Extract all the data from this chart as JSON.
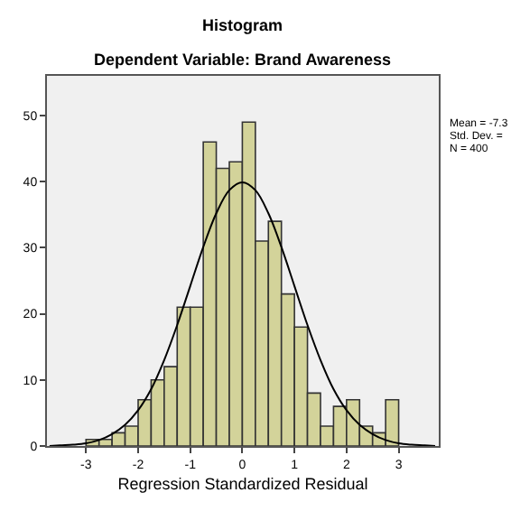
{
  "chart_data": {
    "type": "histogram",
    "title": "Histogram",
    "subtitle": "Dependent Variable: Brand Awareness",
    "xlabel": "Regression Standardized Residual",
    "bins": [
      -3,
      -2.75,
      -2.5,
      -2.25,
      -2,
      -1.75,
      -1.5,
      -1.25,
      -1,
      -0.75,
      -0.5,
      -0.25,
      0,
      0.25,
      0.5,
      0.75,
      1,
      1.25,
      1.5,
      1.75,
      2,
      2.25,
      2.5,
      2.75,
      3
    ],
    "values": [
      1,
      1,
      2,
      3,
      7,
      10,
      12,
      21,
      21,
      46,
      42,
      43,
      49,
      31,
      34,
      23,
      18,
      8,
      3,
      6,
      7,
      3,
      2,
      7
    ],
    "color": "#d3d39a",
    "series": [
      {
        "type": "line",
        "color": "#000000",
        "x": [
          -3.7,
          -3.5,
          -3.25,
          -3,
          -2.75,
          -2.5,
          -2.25,
          -2,
          -1.75,
          -1.5,
          -1.25,
          -1,
          -0.75,
          -0.5,
          -0.25,
          0,
          0.25,
          0.5,
          0.75,
          1,
          1.25,
          1.5,
          1.75,
          2,
          2.25,
          2.5,
          2.75,
          3,
          3.25,
          3.5,
          3.7
        ],
        "values": [
          0,
          0.1,
          0.2,
          0.4,
          0.9,
          1.8,
          3.2,
          5.4,
          8.6,
          13,
          18.3,
          24.2,
          30.1,
          35.2,
          38.7,
          39.9,
          38.7,
          35.2,
          30.1,
          24.2,
          18.3,
          13,
          8.6,
          5.4,
          3.2,
          1.8,
          0.9,
          0.4,
          0.2,
          0.1,
          0
        ]
      }
    ],
    "xlim": [
      -3.75,
      3.77
    ],
    "ylim": [
      0,
      56
    ],
    "xticks": [
      -3,
      -2,
      -1,
      0,
      1,
      2,
      3
    ],
    "yticks": [
      0,
      10,
      20,
      30,
      40,
      50
    ],
    "grid": false,
    "annotations": [
      "Mean = -7.3",
      "Std. Dev. =",
      "N = 400"
    ]
  }
}
